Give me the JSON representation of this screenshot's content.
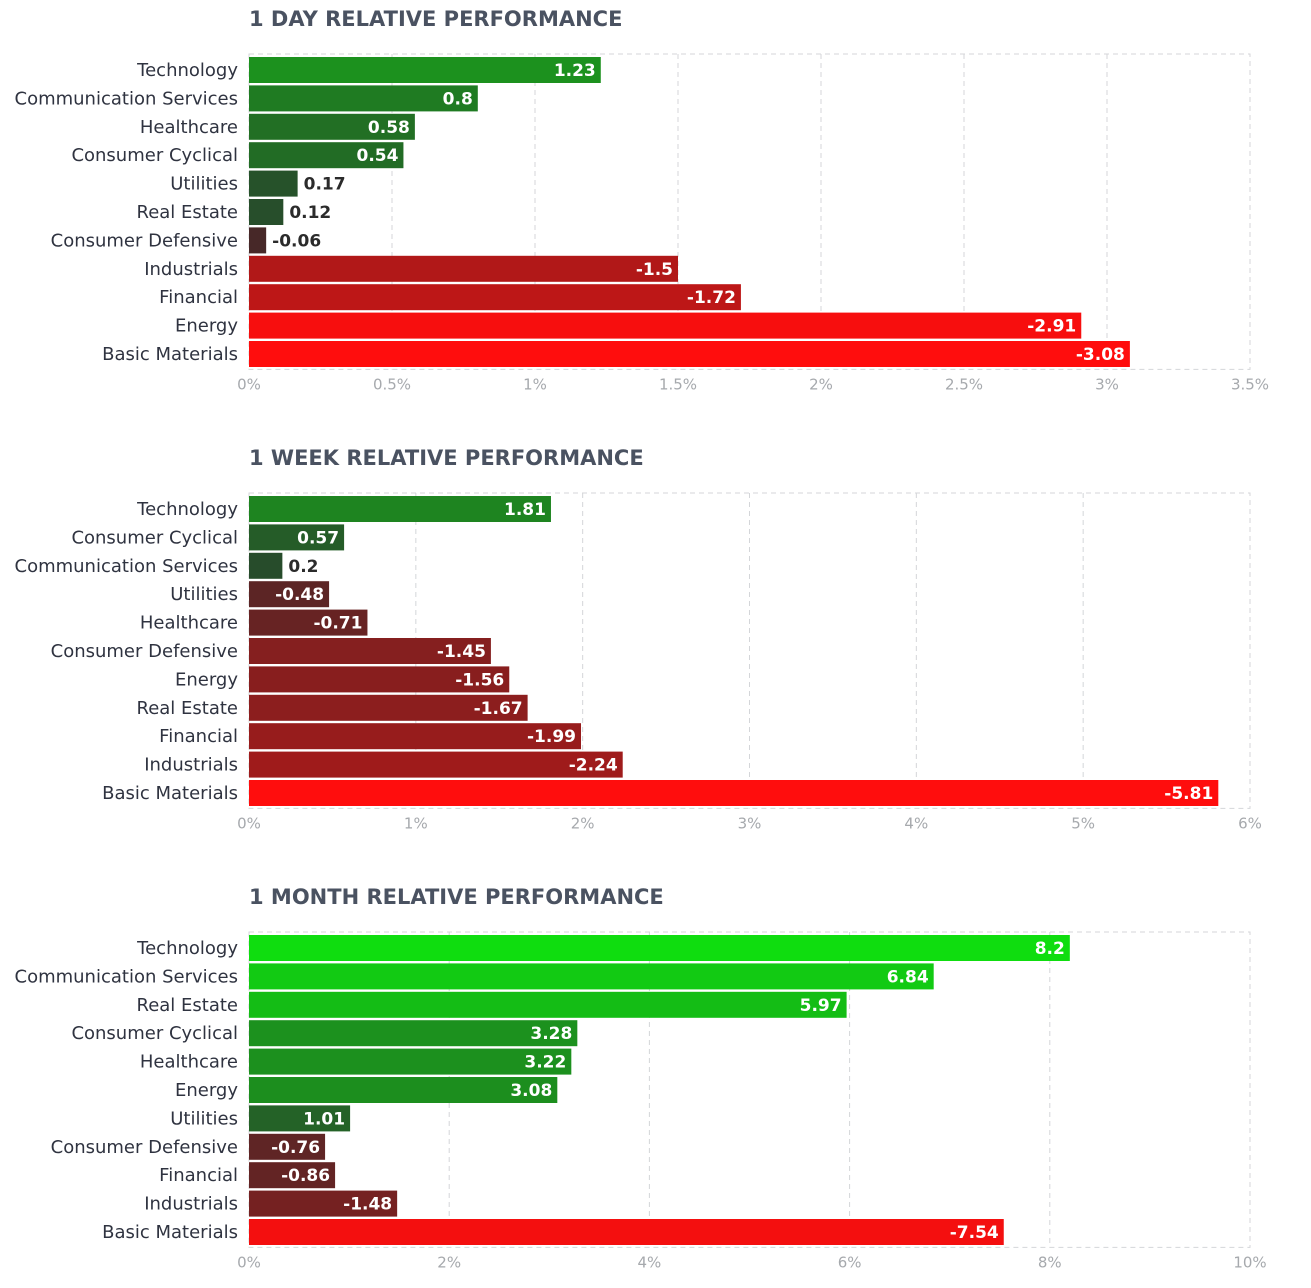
{
  "chart_data": [
    {
      "type": "bar",
      "orientation": "horizontal",
      "title": "1 DAY RELATIVE PERFORMANCE",
      "value_axis": "absolute value (%)",
      "xlim": [
        0,
        3.5
      ],
      "ticks": [
        0,
        0.5,
        1,
        1.5,
        2,
        2.5,
        3,
        3.5
      ],
      "tick_labels": [
        "0%",
        "0.5%",
        "1%",
        "1.5%",
        "2%",
        "2.5%",
        "3%",
        "3.5%"
      ],
      "grid": true,
      "categories": [
        "Technology",
        "Communication Services",
        "Healthcare",
        "Consumer Cyclical",
        "Utilities",
        "Real Estate",
        "Consumer Defensive",
        "Industrials",
        "Financial",
        "Energy",
        "Basic Materials"
      ],
      "values": [
        1.23,
        0.8,
        0.58,
        0.54,
        0.17,
        0.12,
        -0.06,
        -1.5,
        -1.72,
        -2.91,
        -3.08
      ],
      "value_labels": [
        "1.23",
        "0.8",
        "0.58",
        "0.54",
        "0.17",
        "0.12",
        "-0.06",
        "-1.5",
        "-1.72",
        "-2.91",
        "-3.08"
      ]
    },
    {
      "type": "bar",
      "orientation": "horizontal",
      "title": "1 WEEK RELATIVE PERFORMANCE",
      "value_axis": "absolute value (%)",
      "xlim": [
        0,
        6
      ],
      "ticks": [
        0,
        1,
        2,
        3,
        4,
        5,
        6
      ],
      "tick_labels": [
        "0%",
        "1%",
        "2%",
        "3%",
        "4%",
        "5%",
        "6%"
      ],
      "grid": true,
      "categories": [
        "Technology",
        "Consumer Cyclical",
        "Communication Services",
        "Utilities",
        "Healthcare",
        "Consumer Defensive",
        "Energy",
        "Real Estate",
        "Financial",
        "Industrials",
        "Basic Materials"
      ],
      "values": [
        1.81,
        0.57,
        0.2,
        -0.48,
        -0.71,
        -1.45,
        -1.56,
        -1.67,
        -1.99,
        -2.24,
        -5.81
      ],
      "value_labels": [
        "1.81",
        "0.57",
        "0.2",
        "-0.48",
        "-0.71",
        "-1.45",
        "-1.56",
        "-1.67",
        "-1.99",
        "-2.24",
        "-5.81"
      ]
    },
    {
      "type": "bar",
      "orientation": "horizontal",
      "title": "1 MONTH RELATIVE PERFORMANCE",
      "value_axis": "absolute value (%)",
      "xlim": [
        0,
        10
      ],
      "ticks": [
        0,
        2,
        4,
        6,
        8,
        10
      ],
      "tick_labels": [
        "0%",
        "2%",
        "4%",
        "6%",
        "8%",
        "10%"
      ],
      "grid": true,
      "categories": [
        "Technology",
        "Communication Services",
        "Real Estate",
        "Consumer Cyclical",
        "Healthcare",
        "Energy",
        "Utilities",
        "Consumer Defensive",
        "Financial",
        "Industrials",
        "Basic Materials"
      ],
      "values": [
        8.2,
        6.84,
        5.97,
        3.28,
        3.22,
        3.08,
        1.01,
        -0.76,
        -0.86,
        -1.48,
        -7.54
      ],
      "value_labels": [
        "8.2",
        "6.84",
        "5.97",
        "3.28",
        "3.22",
        "3.08",
        "1.01",
        "-0.76",
        "-0.86",
        "-1.48",
        "-7.54"
      ]
    }
  ],
  "colors": {
    "positive_max": "#0fdd0f",
    "positive_min": "#2a3d2e",
    "negative_min": "#3a2a2a",
    "negative_max": "#ff0d0d",
    "title": "#4a5261",
    "category_text": "#2f3340",
    "tick_text": "#a6a9ad",
    "grid": "#d4d6d9"
  }
}
